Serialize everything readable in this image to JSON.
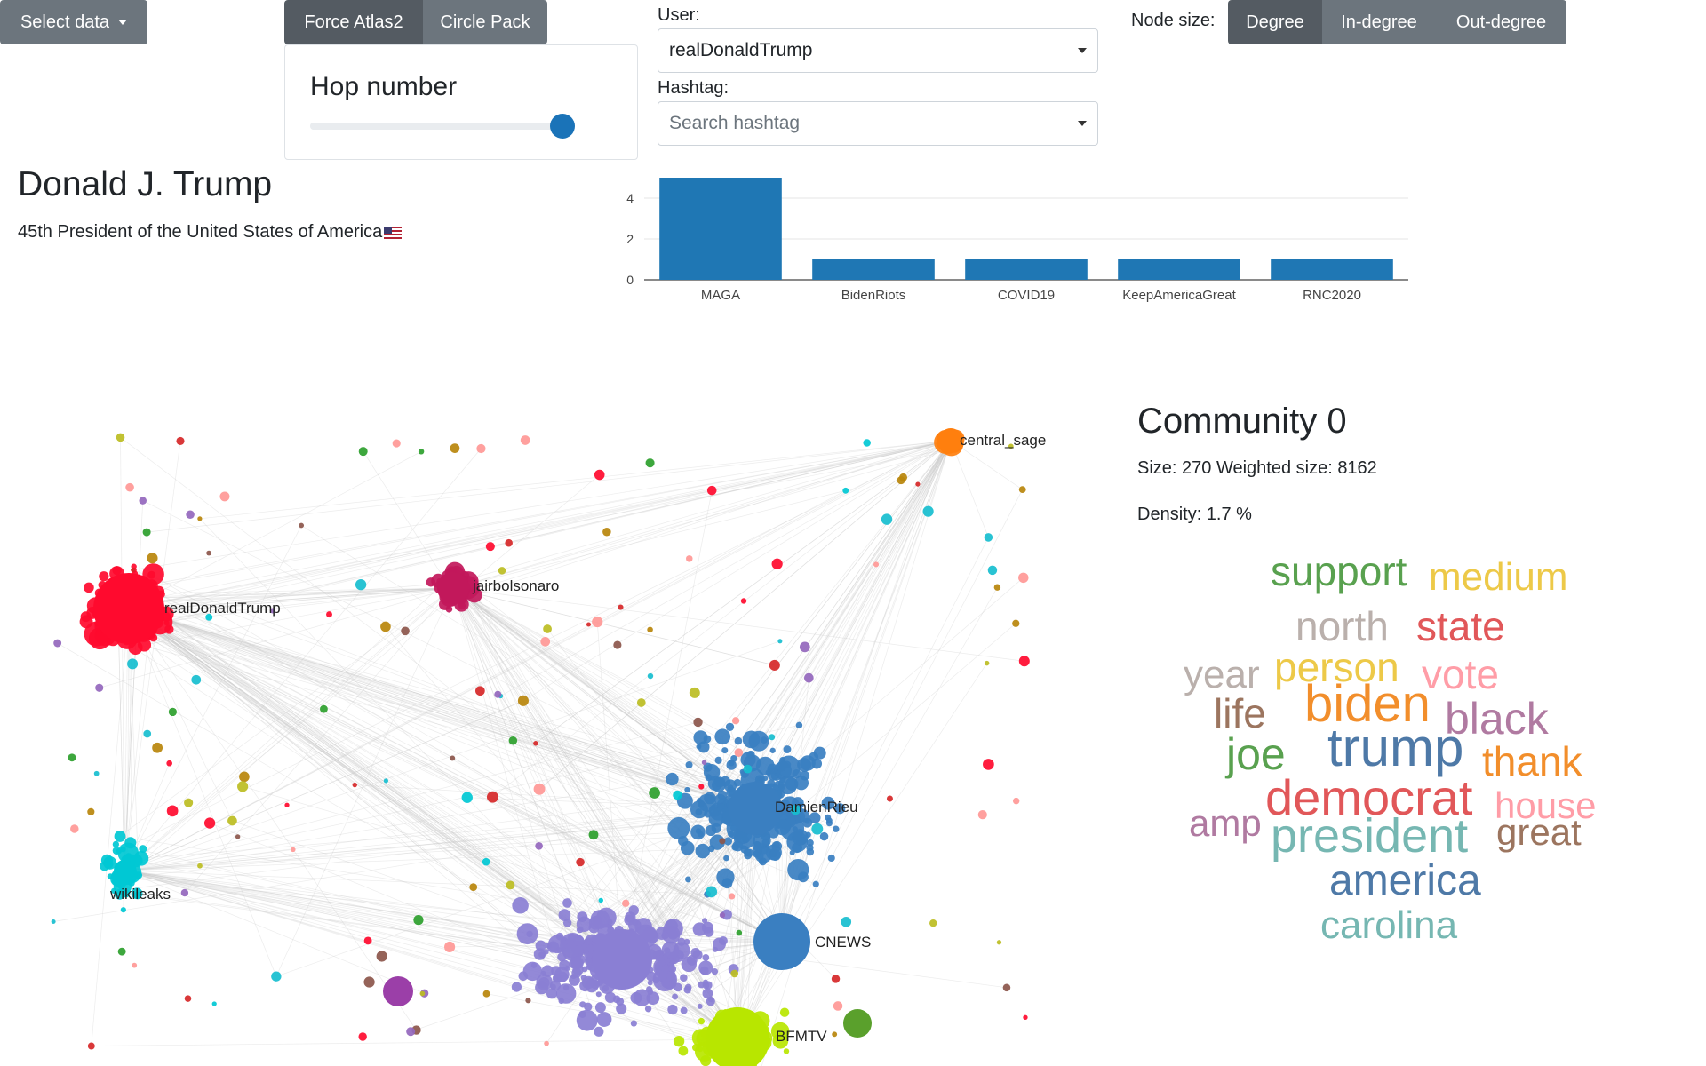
{
  "toolbar": {
    "select_data_label": "Select data",
    "layout_buttons": [
      "Force Atlas2",
      "Circle Pack"
    ],
    "node_size_label": "Node size:",
    "node_size_buttons": [
      "Degree",
      "In-degree",
      "Out-degree"
    ]
  },
  "hop": {
    "title": "Hop number",
    "value_fraction": 1.0
  },
  "user": {
    "label": "User:",
    "value": "realDonaldTrump"
  },
  "hashtag": {
    "label": "Hashtag:",
    "placeholder": "Search hashtag"
  },
  "profile": {
    "name": "Donald J. Trump",
    "description": "45th President of the United States of America"
  },
  "chart_data": {
    "type": "bar",
    "categories": [
      "MAGA",
      "BidenRiots",
      "COVID19",
      "KeepAmericaGreat",
      "RNC2020"
    ],
    "values": [
      5,
      1,
      1,
      1,
      1
    ],
    "ylim": [
      0,
      5
    ],
    "yticks": [
      0,
      2,
      4
    ],
    "grid": true,
    "bar_color": "#1f77b4"
  },
  "network": {
    "labels": [
      "central_sage",
      "realDonaldTrump",
      "jairbolsonaro",
      "DamienRieu",
      "wikileaks",
      "CNEWS",
      "BFMTV"
    ]
  },
  "community": {
    "title": "Community 0",
    "size_text": "Size: 270 Weighted size: 8162",
    "density_text": "Density: 1.7 %",
    "words": [
      {
        "text": "support",
        "color": "#59a14f"
      },
      {
        "text": "medium",
        "color": "#edc948"
      },
      {
        "text": "north",
        "color": "#bab0ac"
      },
      {
        "text": "state",
        "color": "#e15759"
      },
      {
        "text": "year",
        "color": "#bab0ac"
      },
      {
        "text": "person",
        "color": "#edc948"
      },
      {
        "text": "vote",
        "color": "#ff9da7"
      },
      {
        "text": "life",
        "color": "#9c755f"
      },
      {
        "text": "biden",
        "color": "#f28e2b"
      },
      {
        "text": "black",
        "color": "#b07aa1"
      },
      {
        "text": "joe",
        "color": "#59a14f"
      },
      {
        "text": "trump",
        "color": "#4e79a7"
      },
      {
        "text": "thank",
        "color": "#f28e2b"
      },
      {
        "text": "democrat",
        "color": "#e15759"
      },
      {
        "text": "house",
        "color": "#ff9da7"
      },
      {
        "text": "amp",
        "color": "#b07aa1"
      },
      {
        "text": "president",
        "color": "#76b7b2"
      },
      {
        "text": "great",
        "color": "#9c755f"
      },
      {
        "text": "america",
        "color": "#4e79a7"
      },
      {
        "text": "carolina",
        "color": "#76b7b2"
      }
    ]
  }
}
